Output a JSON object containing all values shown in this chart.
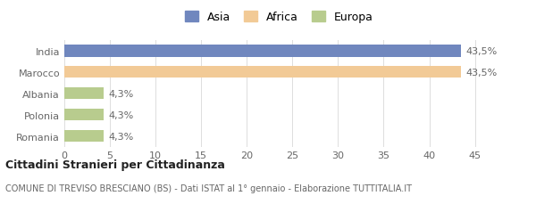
{
  "categories": [
    "India",
    "Marocco",
    "Albania",
    "Polonia",
    "Romania"
  ],
  "values": [
    43.5,
    43.5,
    4.3,
    4.3,
    4.3
  ],
  "labels": [
    "43,5%",
    "43,5%",
    "4,3%",
    "4,3%",
    "4,3%"
  ],
  "colors": [
    "#7087be",
    "#f2ca96",
    "#b8cc8e",
    "#b8cc8e",
    "#b8cc8e"
  ],
  "legend": [
    {
      "label": "Asia",
      "color": "#7087be"
    },
    {
      "label": "Africa",
      "color": "#f2ca96"
    },
    {
      "label": "Europa",
      "color": "#b8cc8e"
    }
  ],
  "xlim": [
    0,
    47
  ],
  "xticks": [
    0,
    5,
    10,
    15,
    20,
    25,
    30,
    35,
    40,
    45
  ],
  "title_bold": "Cittadini Stranieri per Cittadinanza",
  "subtitle": "COMUNE DI TREVISO BRESCIANO (BS) - Dati ISTAT al 1° gennaio - Elaborazione TUTTITALIA.IT",
  "background_color": "#ffffff",
  "bar_height": 0.55,
  "label_fontsize": 8,
  "tick_label_fontsize": 8,
  "legend_fontsize": 9
}
